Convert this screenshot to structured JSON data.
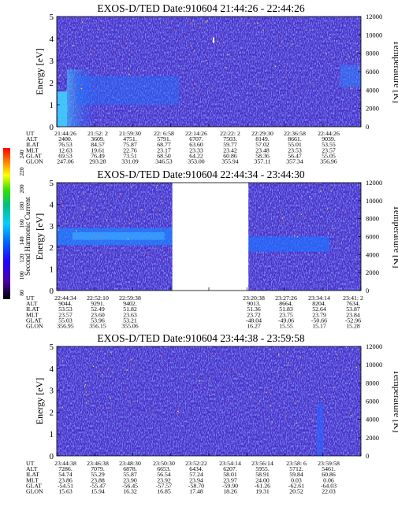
{
  "chart_data": {
    "type": "heatmap",
    "colorbar": {
      "label": "Second Harmonic Current",
      "ticks": [
        "240",
        "220",
        "200",
        "180",
        "160",
        "140",
        "120",
        "100",
        "80"
      ],
      "range": [
        80,
        240
      ],
      "colors": [
        "#ff0000",
        "#ff8000",
        "#ffff00",
        "#00ff00",
        "#00c0a0",
        "#00ffff",
        "#0080ff",
        "#0000ff",
        "#5000c0",
        "#000000"
      ]
    },
    "panels": [
      {
        "title": "EXOS-D/TED   Date:910604  21:44:26 - 22:44:26",
        "ylabel": "Energy [eV]",
        "y2label": "Temperature [K]",
        "ylim": [
          0,
          5
        ],
        "y2lim": [
          0,
          12000
        ],
        "yticks": [
          "0",
          "1",
          "2",
          "3",
          "4",
          "5"
        ],
        "y2ticks": [
          "0",
          "2000",
          "4000",
          "6000",
          "8000",
          "10000",
          "12000"
        ],
        "data_gap": null,
        "row_labels": [
          "UT",
          "ALT",
          "ILAT",
          "MLT",
          "GLAT",
          "GLON"
        ],
        "columns": [
          [
            "21:44:26",
            "2400.",
            "76.53",
            "12.63",
            "69.53",
            "247.06"
          ],
          [
            "21:52: 2",
            "3609.",
            "84.57",
            "19.61",
            "76.49",
            "293.28"
          ],
          [
            "21:59:30",
            "4751.",
            "75.87",
            "22.76",
            "73.51",
            "331.09"
          ],
          [
            "22: 6:58",
            "5791.",
            "68.77",
            "23.17",
            "68.50",
            "346.53"
          ],
          [
            "22:14:26",
            "6707.",
            "63.60",
            "23.33",
            "64.22",
            "353.00"
          ],
          [
            "22:22: 2",
            "7503.",
            "59.77",
            "23.42",
            "60.86",
            "355.94"
          ],
          [
            "22:29:30",
            "8149.",
            "57.02",
            "23.48",
            "58.36",
            "357.11"
          ],
          [
            "22:36:58",
            "8661.",
            "55.01",
            "23.53",
            "56.47",
            "357.34"
          ],
          [
            "22:44:26",
            "9039.",
            "53.55",
            "23.57",
            "55.05",
            "356.96"
          ]
        ]
      },
      {
        "title": "EXOS-D/TED   Date:910604  22:44:34 - 23:44:30",
        "ylabel": "Energy [eV]",
        "y2label": "Temperature [K]",
        "ylim": [
          0,
          5
        ],
        "y2lim": [
          0,
          12000
        ],
        "yticks": [
          "0",
          "1",
          "2",
          "3",
          "4",
          "5"
        ],
        "y2ticks": [
          "0",
          "2000",
          "4000",
          "6000",
          "8000",
          "10000",
          "12000"
        ],
        "data_gap": [
          0.38,
          0.63
        ],
        "row_labels": [
          "UT",
          "ALT",
          "ILAT",
          "MLT",
          "GLAT",
          "GLON"
        ],
        "columns": [
          [
            "22:44:34",
            "9044.",
            "53.53",
            "23.57",
            "55.03",
            "356.95"
          ],
          [
            "22:52:10",
            "9291.",
            "52.49",
            "23.60",
            "53.96",
            "356.15"
          ],
          [
            "22:59:38",
            "9402.",
            "51.82",
            "23.63",
            "53.21",
            "355.06"
          ],
          null,
          null,
          [
            "23:20:38",
            "9013.",
            "51.36",
            "23.72",
            "-48.04",
            "16.27"
          ],
          [
            "23:27:26",
            "8664.",
            "51.83",
            "23.75",
            "-49.06",
            "15.55"
          ],
          [
            "23:34:14",
            "8204.",
            "52.64",
            "23.79",
            "-50.66",
            "15.17"
          ],
          [
            "23:41: 2",
            "7634.",
            "53.87",
            "23.84",
            "-52.96",
            "15.28"
          ]
        ]
      },
      {
        "title": "EXOS-D/TED   Date:910604  23:44:38 - 23:59:58",
        "ylabel": "Energy [eV]",
        "y2label": "Temperature [K]",
        "ylim": [
          0,
          5
        ],
        "y2lim": [
          0,
          12000
        ],
        "yticks": [
          "0",
          "1",
          "2",
          "3",
          "4",
          "5"
        ],
        "y2ticks": [
          "0",
          "2000",
          "4000",
          "6000",
          "8000",
          "10000",
          "12000"
        ],
        "data_gap": null,
        "row_labels": [
          "UT",
          "ALT",
          "ILAT",
          "MLT",
          "GLAT",
          "GLON"
        ],
        "columns": [
          [
            "23:44:38",
            "7286.",
            "54.74",
            "23.86",
            "-54.51",
            "15.63"
          ],
          [
            "23:46:38",
            "7079.",
            "55.29",
            "23.88",
            "-55.47",
            "15.94"
          ],
          [
            "23:48:30",
            "6878.",
            "55.87",
            "23.90",
            "-56.45",
            "16.32"
          ],
          [
            "23:50:30",
            "6653.",
            "56.54",
            "23.92",
            "-57.57",
            "16.85"
          ],
          [
            "23:52:22",
            "6434.",
            "57.24",
            "23.94",
            "-58.70",
            "17.48"
          ],
          [
            "23:54:14",
            "6207.",
            "58.01",
            "23.97",
            "-59.90",
            "18.26"
          ],
          [
            "23:56:14",
            "5955.",
            "58.91",
            "24.00",
            "-61.26",
            "19.31"
          ],
          [
            "23:58: 6",
            "5712.",
            "59.84",
            "0.03",
            "-62.61",
            "20.52"
          ],
          [
            "23:59:58",
            "5461.",
            "60.86",
            "0.06",
            "-64.03",
            "22.03"
          ]
        ]
      }
    ]
  }
}
